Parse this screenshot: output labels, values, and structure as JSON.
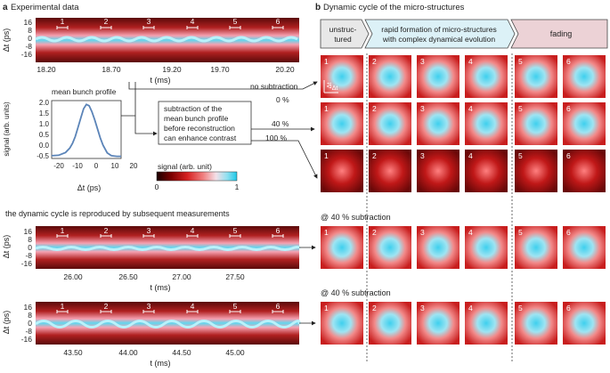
{
  "panel_a": {
    "letter": "a",
    "title": "Experimental data",
    "y_axis_label": "Δt (ps)",
    "x_axis_label": "t (ms)",
    "y_ticks": [
      "16",
      "8",
      "0",
      "-8",
      "-16"
    ],
    "row1_x_ticks": [
      "18.20",
      "18.70",
      "19.20",
      "19.70",
      "20.20"
    ],
    "row2_x_ticks": [
      "26.00",
      "26.50",
      "27.00",
      "27.50"
    ],
    "row3_x_ticks": [
      "43.50",
      "44.00",
      "44.50",
      "45.00"
    ],
    "markers": [
      "1",
      "2",
      "3",
      "4",
      "5",
      "6"
    ],
    "reproduced_caption": "the dynamic cycle is reproduced by subsequent measurements"
  },
  "profile": {
    "title": "mean bunch profile",
    "ylabel": "signal (arb. units)",
    "xlabel": "Δt (ps)",
    "y_ticks": [
      "2.0",
      "1.5",
      "1.0",
      "0.5",
      "0.0",
      "-0.5"
    ],
    "x_ticks": [
      "-20",
      "-10",
      "0",
      "10",
      "20"
    ]
  },
  "colorbar": {
    "label": "signal (arb. unit)",
    "min_label": "0",
    "max_label": "1",
    "colors": [
      "#1a0000",
      "#7a0000",
      "#d62020",
      "#f08080",
      "#f4e0e8",
      "#8fe0f0",
      "#1cc8e8"
    ]
  },
  "note": {
    "lines": [
      "subtraction of the",
      "mean bunch profile",
      "before reconstruction",
      "can enhance contrast"
    ]
  },
  "subtraction_labels": {
    "none": "no subtraction",
    "p0": "0 %",
    "p40": "40 %",
    "p100": "100 %"
  },
  "panel_b": {
    "letter": "b",
    "title": "Dynamic cycle of the micro-structures",
    "phase1_lines": [
      "unstruc-",
      "tured"
    ],
    "phase2_lines": [
      "rapid formation of micro-structures",
      "with complex dynamical evolution"
    ],
    "phase3": "fading",
    "tile_numbers": [
      "1",
      "2",
      "3",
      "4",
      "5",
      "6"
    ],
    "at40_caption_1": "@ 40 % subtraction",
    "at40_caption_2": "@ 40 % subtraction",
    "inset_axis_y": "Δt",
    "inset_axis_x": "Δt"
  },
  "chart_data": {
    "type": "line",
    "title": "mean bunch profile",
    "xlabel": "Δt (ps)",
    "ylabel": "signal (arb. units)",
    "xlim": [
      -25,
      25
    ],
    "ylim": [
      -0.6,
      2.1
    ],
    "x": [
      -25,
      -20,
      -15,
      -12,
      -10,
      -8,
      -6,
      -4,
      -2,
      0,
      2,
      4,
      6,
      8,
      10,
      12,
      15,
      18,
      22,
      25
    ],
    "series": [
      {
        "values": [
          -0.47,
          -0.45,
          -0.32,
          -0.12,
          0.1,
          0.42,
          0.85,
          1.3,
          1.72,
          1.92,
          1.86,
          1.58,
          1.2,
          0.78,
          0.36,
          0.02,
          -0.34,
          -0.47,
          -0.5,
          -0.5
        ]
      }
    ]
  }
}
